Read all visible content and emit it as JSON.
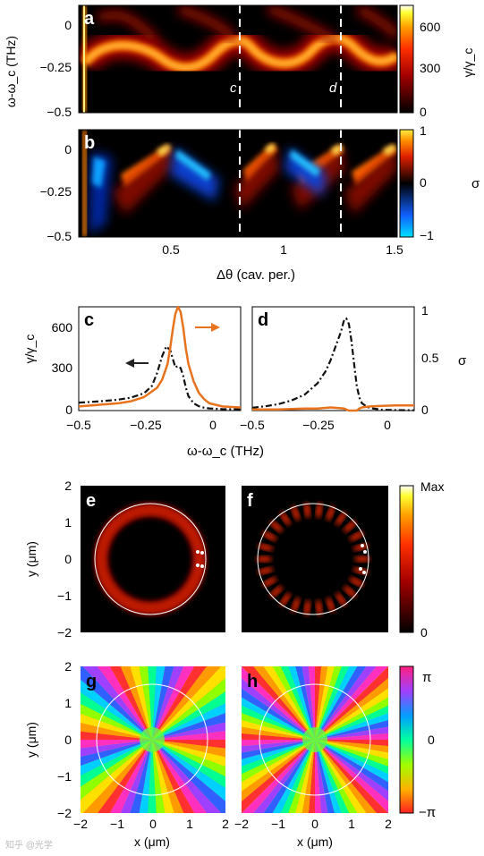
{
  "figure": {
    "panels": [
      {
        "id": "a",
        "letter": "a",
        "ylabel": "ω-ω_c (THz)",
        "colorbar_label": "γ/γ_c",
        "marker_c": "c",
        "marker_d": "d"
      },
      {
        "id": "b",
        "letter": "b",
        "colorbar_label": "σ",
        "xlabel": "Δθ (cav. per.)"
      },
      {
        "id": "c",
        "letter": "c",
        "ylabel": "γ/γ_c",
        "xlabel": "ω-ω_c (THz)"
      },
      {
        "id": "d",
        "letter": "d",
        "ylabel_right": "σ"
      },
      {
        "id": "e",
        "letter": "e",
        "ylabel": "y (μm)",
        "colorbar_max": "Max",
        "colorbar_min": "0"
      },
      {
        "id": "f",
        "letter": "f"
      },
      {
        "id": "g",
        "letter": "g",
        "ylabel": "y (μm)",
        "xlabel": "x (μm)",
        "colorbar_max": "π",
        "colorbar_mid": "0",
        "colorbar_min": "−π"
      },
      {
        "id": "h",
        "letter": "h",
        "xlabel": "x (μm)"
      }
    ],
    "ticks": {
      "ab_y": [
        "0",
        "−0.25",
        "−0.5"
      ],
      "ab_x": [
        "0.5",
        "1",
        "1.5"
      ],
      "a_cbar": [
        "600",
        "300",
        "0"
      ],
      "b_cbar": [
        "1",
        "0",
        "−1"
      ],
      "cd_x": [
        "−0.5",
        "−0.25",
        "0"
      ],
      "c_y": [
        "600",
        "300",
        "0"
      ],
      "d_y_right": [
        "1",
        "0.5",
        "0"
      ],
      "maps": [
        "2",
        "1",
        "0",
        "−1",
        "−2"
      ]
    },
    "watermark": "知乎 @光学"
  },
  "colors": {
    "orange": "#e8731e",
    "black": "#111111",
    "marker_line": "#ffffff"
  },
  "chart_data": [
    {
      "type": "line",
      "panel": "c",
      "xlabel": "ω-ω_c (THz)",
      "ylabel": "γ/γ_c",
      "xlim": [
        -0.5,
        0.12
      ],
      "ylim": [
        0,
        720
      ],
      "y2lim": [
        0,
        1
      ],
      "series": [
        {
          "axis": "left",
          "style": "dash-dot",
          "color": "#111111",
          "x": [
            -0.5,
            -0.45,
            -0.4,
            -0.35,
            -0.3,
            -0.25,
            -0.22,
            -0.2,
            -0.18,
            -0.165,
            -0.15,
            -0.14,
            -0.13,
            -0.12,
            -0.11,
            -0.1,
            -0.09,
            -0.08,
            -0.06,
            -0.04,
            -0.02,
            0,
            0.05,
            0.12
          ],
          "y": [
            55,
            60,
            67,
            75,
            90,
            120,
            170,
            260,
            380,
            445,
            420,
            360,
            300,
            310,
            295,
            240,
            160,
            100,
            50,
            30,
            20,
            15,
            10,
            8
          ]
        },
        {
          "axis": "right",
          "style": "solid",
          "color": "#e8731e",
          "x": [
            -0.5,
            -0.45,
            -0.4,
            -0.35,
            -0.3,
            -0.25,
            -0.2,
            -0.18,
            -0.16,
            -0.15,
            -0.14,
            -0.13,
            -0.12,
            -0.11,
            -0.1,
            -0.09,
            -0.08,
            -0.06,
            -0.04,
            -0.02,
            0,
            0.05,
            0.12
          ],
          "y": [
            0.04,
            0.05,
            0.06,
            0.07,
            0.09,
            0.13,
            0.22,
            0.3,
            0.45,
            0.6,
            0.78,
            0.93,
            1.0,
            0.95,
            0.8,
            0.6,
            0.45,
            0.28,
            0.17,
            0.11,
            0.07,
            0.04,
            0.03
          ]
        }
      ]
    },
    {
      "type": "line",
      "panel": "d",
      "xlim": [
        -0.5,
        0.12
      ],
      "ylim": [
        0,
        720
      ],
      "y2lim": [
        0,
        1
      ],
      "series": [
        {
          "axis": "left",
          "style": "dash-dot",
          "color": "#111111",
          "x": [
            -0.5,
            -0.45,
            -0.4,
            -0.35,
            -0.3,
            -0.25,
            -0.22,
            -0.2,
            -0.18,
            -0.16,
            -0.15,
            -0.14,
            -0.13,
            -0.12,
            -0.11,
            -0.1,
            -0.09,
            -0.08,
            -0.06,
            -0.04,
            -0.02,
            0,
            0.05,
            0.12
          ],
          "y": [
            20,
            30,
            45,
            70,
            110,
            190,
            270,
            350,
            450,
            550,
            620,
            640,
            600,
            480,
            320,
            170,
            90,
            50,
            25,
            15,
            10,
            5,
            3,
            2
          ]
        },
        {
          "axis": "right",
          "style": "solid",
          "color": "#e8731e",
          "x": [
            -0.5,
            -0.4,
            -0.3,
            -0.25,
            -0.2,
            -0.15,
            -0.13,
            -0.12,
            -0.11,
            -0.1,
            -0.09,
            -0.08,
            -0.05,
            0,
            0.05,
            0.12
          ],
          "y": [
            0.01,
            0.01,
            0.02,
            0.02,
            0.03,
            0.02,
            -0.01,
            -0.03,
            -0.02,
            0.0,
            0.02,
            0.03,
            0.04,
            0.045,
            0.05,
            0.05
          ]
        }
      ]
    }
  ]
}
